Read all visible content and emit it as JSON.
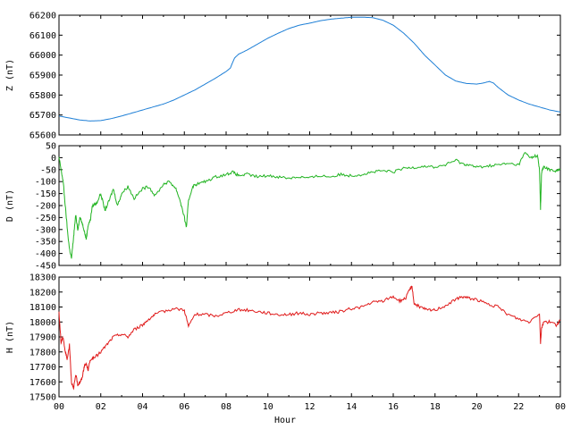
{
  "chart_data": [
    {
      "type": "line",
      "ylabel": "Z (nT)",
      "ylim": [
        65600,
        66200
      ],
      "yticks": [
        65600,
        65700,
        65800,
        65900,
        66000,
        66100,
        66200
      ],
      "xlim": [
        0,
        24
      ],
      "grid": false,
      "color": "#1e7fd6",
      "series": [
        {
          "x": [
            0,
            0.5,
            1,
            1.5,
            2,
            2.5,
            3,
            3.5,
            4,
            4.5,
            5,
            5.5,
            6,
            6.5,
            7,
            7.5,
            8,
            8.2,
            8.4,
            8.6,
            9,
            9.5,
            10,
            10.5,
            11,
            11.5,
            12,
            12.5,
            13,
            13.5,
            14,
            14.5,
            15,
            15.5,
            16,
            16.5,
            17,
            17.5,
            18,
            18.5,
            19,
            19.5,
            20,
            20.3,
            20.6,
            20.8,
            21,
            21.5,
            22,
            22.5,
            23,
            23.5,
            24
          ],
          "values": [
            65695,
            65685,
            65675,
            65670,
            65672,
            65682,
            65695,
            65710,
            65725,
            65740,
            65755,
            65775,
            65800,
            65825,
            65855,
            65885,
            65918,
            65935,
            65985,
            66005,
            66025,
            66055,
            66085,
            66110,
            66133,
            66150,
            66160,
            66172,
            66180,
            66185,
            66190,
            66190,
            66188,
            66175,
            66150,
            66110,
            66060,
            66000,
            65950,
            65900,
            65870,
            65858,
            65855,
            65860,
            65868,
            65860,
            65840,
            65800,
            65775,
            65755,
            65740,
            65725,
            65715
          ]
        }
      ]
    },
    {
      "type": "line",
      "ylabel": "D (nT)",
      "ylim": [
        -450,
        50
      ],
      "yticks": [
        -450,
        -400,
        -350,
        -300,
        -250,
        -200,
        -150,
        -100,
        -50,
        0,
        50
      ],
      "xlim": [
        0,
        24
      ],
      "grid": false,
      "color": "#22b422",
      "series": [
        {
          "x": [
            0,
            0.1,
            0.2,
            0.3,
            0.4,
            0.5,
            0.6,
            0.7,
            0.8,
            0.9,
            1,
            1.1,
            1.2,
            1.3,
            1.4,
            1.5,
            1.6,
            1.8,
            2,
            2.2,
            2.4,
            2.6,
            2.8,
            3,
            3.3,
            3.6,
            4,
            4.3,
            4.6,
            5,
            5.3,
            5.6,
            5.8,
            6,
            6.1,
            6.2,
            6.4,
            6.6,
            7,
            7.5,
            8,
            8.3,
            8.6,
            9,
            9.5,
            10,
            10.5,
            11,
            11.5,
            12,
            12.5,
            13,
            13.5,
            14,
            14.5,
            15,
            15.5,
            16,
            16.5,
            17,
            17.5,
            18,
            18.5,
            19,
            19.3,
            19.6,
            20,
            20.5,
            21,
            21.5,
            22,
            22.3,
            22.6,
            22.9,
            23,
            23.05,
            23.1,
            23.2,
            23.5,
            23.8,
            24
          ],
          "values": [
            0,
            -50,
            -100,
            -200,
            -300,
            -380,
            -420,
            -330,
            -240,
            -300,
            -250,
            -270,
            -300,
            -340,
            -280,
            -260,
            -200,
            -190,
            -150,
            -220,
            -180,
            -130,
            -200,
            -150,
            -120,
            -170,
            -130,
            -120,
            -160,
            -110,
            -100,
            -130,
            -180,
            -250,
            -290,
            -180,
            -120,
            -110,
            -100,
            -80,
            -70,
            -60,
            -75,
            -70,
            -80,
            -75,
            -80,
            -85,
            -80,
            -85,
            -75,
            -80,
            -70,
            -75,
            -70,
            -60,
            -55,
            -60,
            -45,
            -40,
            -35,
            -40,
            -30,
            -10,
            -25,
            -30,
            -40,
            -35,
            -30,
            -25,
            -30,
            20,
            0,
            10,
            -50,
            -215,
            -60,
            -40,
            -50,
            -55,
            -50
          ]
        }
      ]
    },
    {
      "type": "line",
      "ylabel": "H (nT)",
      "xlabel": "Hour",
      "ylim": [
        17500,
        18300
      ],
      "yticks": [
        17500,
        17600,
        17700,
        17800,
        17900,
        18000,
        18100,
        18200,
        18300
      ],
      "xlim": [
        0,
        24
      ],
      "xticks": [
        "00",
        "02",
        "04",
        "06",
        "08",
        "10",
        "12",
        "14",
        "16",
        "18",
        "20",
        "22",
        "00"
      ],
      "grid": false,
      "color": "#e01a1a",
      "series": [
        {
          "x": [
            0,
            0.1,
            0.2,
            0.3,
            0.4,
            0.5,
            0.6,
            0.7,
            0.8,
            0.9,
            1,
            1.1,
            1.2,
            1.3,
            1.4,
            1.5,
            1.7,
            2,
            2.3,
            2.6,
            3,
            3.3,
            3.6,
            4,
            4.3,
            4.6,
            5,
            5.5,
            6,
            6.2,
            6.5,
            7,
            7.5,
            8,
            8.5,
            9,
            9.5,
            10,
            10.5,
            11,
            11.5,
            12,
            12.5,
            13,
            13.5,
            14,
            14.5,
            15,
            15.5,
            16,
            16.3,
            16.6,
            16.8,
            16.9,
            17,
            17.3,
            17.6,
            18,
            18.5,
            19,
            19.3,
            19.6,
            20,
            20.5,
            21,
            21.5,
            22,
            22.5,
            23,
            23.05,
            23.1,
            23.2,
            23.5,
            23.8,
            24
          ],
          "values": [
            18060,
            17860,
            17900,
            17800,
            17750,
            17850,
            17600,
            17550,
            17650,
            17580,
            17600,
            17620,
            17700,
            17720,
            17680,
            17750,
            17760,
            17800,
            17850,
            17900,
            17920,
            17900,
            17950,
            17980,
            18020,
            18050,
            18070,
            18090,
            18080,
            17970,
            18050,
            18050,
            18040,
            18060,
            18080,
            18080,
            18070,
            18060,
            18050,
            18050,
            18060,
            18050,
            18060,
            18060,
            18070,
            18090,
            18100,
            18130,
            18140,
            18170,
            18140,
            18160,
            18220,
            18240,
            18120,
            18100,
            18080,
            18080,
            18110,
            18150,
            18170,
            18160,
            18150,
            18120,
            18100,
            18050,
            18020,
            18000,
            18060,
            17860,
            17960,
            18000,
            18000,
            17980,
            18010
          ]
        }
      ]
    }
  ]
}
